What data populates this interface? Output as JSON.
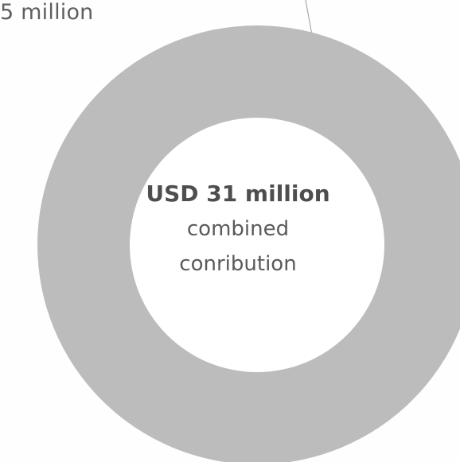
{
  "chart_data": {
    "type": "pie",
    "style": "donut",
    "callout_label": "5 million",
    "center_text": {
      "amount": "USD 31 million",
      "line1": "combined",
      "line2": "conribution"
    },
    "slices": [
      {
        "value": 31
      }
    ],
    "total": 31,
    "colors": {
      "ring": "#bcbcbc",
      "hole": "#ffffff",
      "leader_line": "#9a9a9a",
      "text": "#5b5b5b"
    }
  }
}
